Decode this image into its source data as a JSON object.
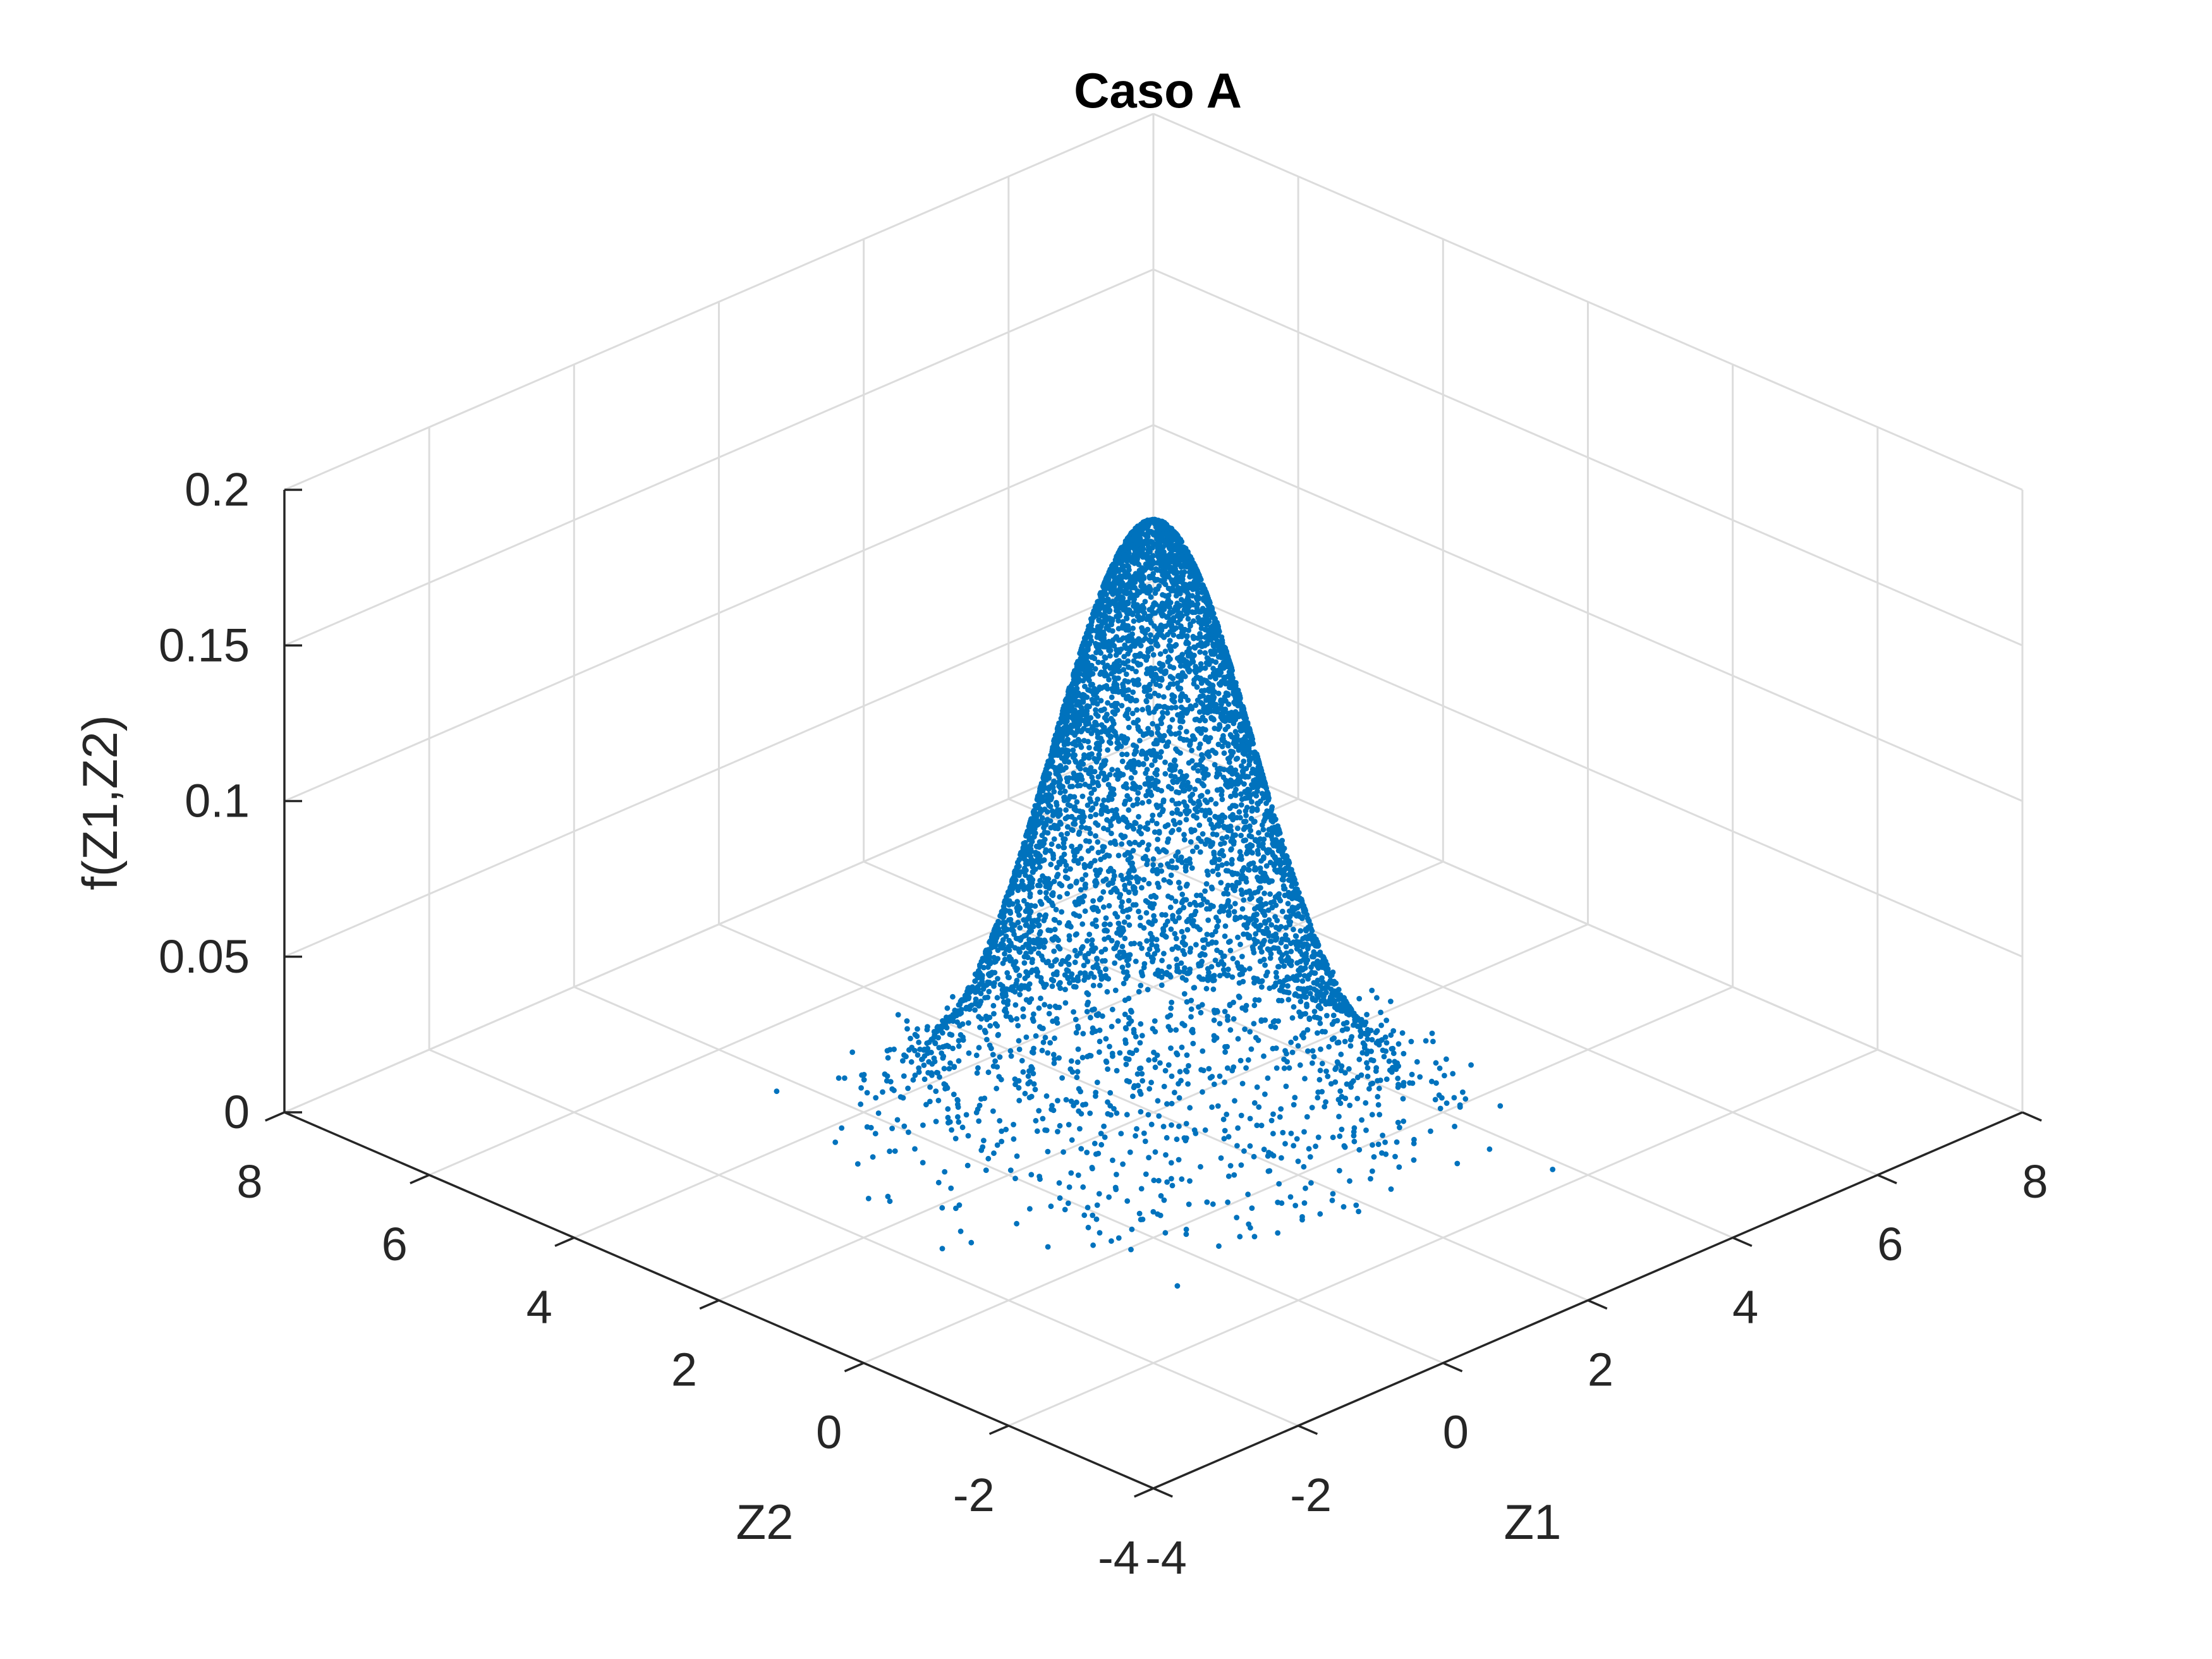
{
  "chart_data": {
    "type": "scatter3d",
    "title": "Caso A",
    "xlabel": "Z1",
    "ylabel": "Z2",
    "zlabel": "f(Z1,Z2)",
    "xlim": [
      -4,
      8
    ],
    "ylim": [
      -4,
      8
    ],
    "zlim": [
      0,
      0.2
    ],
    "xticks": [
      -4,
      -2,
      0,
      2,
      4,
      6,
      8
    ],
    "yticks": [
      -4,
      -2,
      0,
      2,
      4,
      6,
      8
    ],
    "zticks": [
      0,
      0.05,
      0.1,
      0.15,
      0.2
    ],
    "xtick_labels": [
      "-4",
      "-2",
      "0",
      "2",
      "4",
      "6",
      "8"
    ],
    "ytick_labels": [
      "-4",
      "-2",
      "0",
      "2",
      "4",
      "6",
      "8"
    ],
    "ztick_labels": [
      "0",
      "0.05",
      "0.1",
      "0.15",
      "0.2"
    ],
    "grid": true,
    "view": "isometric (az -37.5-like, el 30)",
    "series": [
      {
        "distribution": "bivariate normal sample with density height",
        "mean": [
          2,
          2
        ],
        "std": [
          1,
          1
        ],
        "peak": 0.19,
        "n_points": 6000,
        "color": "#0072bd"
      }
    ]
  }
}
